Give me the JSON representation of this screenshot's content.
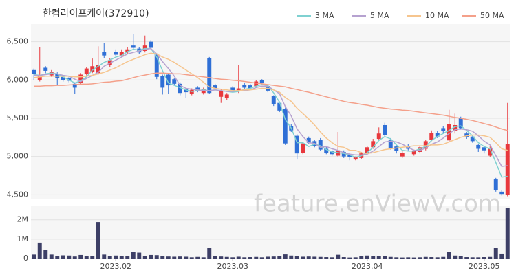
{
  "watermark": "feature.enViewV.com",
  "chart_data": [
    {
      "type": "candlestick",
      "title": "한컴라이프케어(372910)",
      "up_color": "#e8383d",
      "down_color": "#2f6fd6",
      "grid": true,
      "legend": "top-right",
      "ylim": [
        4440,
        6730
      ],
      "yticks": [
        {
          "value": 4500,
          "label": "4,500"
        },
        {
          "value": 5000,
          "label": "5,000"
        },
        {
          "value": 5500,
          "label": "5,500"
        },
        {
          "value": 6000,
          "label": "6,000"
        },
        {
          "value": 6500,
          "label": "6,500"
        }
      ],
      "open": [
        6130,
        6000,
        6160,
        6060,
        6080,
        6040,
        6030,
        5950,
        5960,
        6080,
        6110,
        6090,
        6370,
        6200,
        6370,
        6320,
        6360,
        6450,
        6410,
        6380,
        6500,
        6330,
        6050,
        6070,
        6010,
        5950,
        5880,
        5820,
        5900,
        5830,
        6290,
        5930,
        5780,
        5760,
        5900,
        5850,
        5940,
        5930,
        5920,
        6000,
        5920,
        5790,
        5700,
        5620,
        5400,
        5270,
        5050,
        5240,
        5200,
        5220,
        5100,
        5070,
        5010,
        5060,
        5030,
        4960,
        4980,
        5050,
        5120,
        5230,
        5410,
        5220,
        5130,
        5000,
        5140,
        5030,
        5060,
        5100,
        5220,
        5310,
        5370,
        5210,
        5330,
        5500,
        5300,
        5260,
        5150,
        5120,
        5010,
        4700,
        4540,
        4500
      ],
      "high": [
        6150,
        6430,
        6180,
        6130,
        6100,
        6060,
        6050,
        5970,
        6090,
        6170,
        6280,
        6440,
        6480,
        6290,
        6400,
        6400,
        6430,
        6600,
        6430,
        6580,
        6520,
        6350,
        6070,
        6090,
        6030,
        5970,
        5900,
        5890,
        5920,
        5900,
        6300,
        5950,
        5880,
        5830,
        5920,
        6200,
        5960,
        5950,
        6000,
        6010,
        5940,
        5800,
        5720,
        5640,
        5420,
        5290,
        5190,
        5260,
        5220,
        5240,
        5130,
        5080,
        5320,
        5080,
        5050,
        5000,
        5060,
        5140,
        5230,
        5380,
        5440,
        5240,
        5150,
        5070,
        5160,
        5090,
        5140,
        5220,
        5340,
        5330,
        5400,
        5610,
        5560,
        5520,
        5320,
        5270,
        5160,
        5130,
        5130,
        4720,
        4560,
        5700
      ],
      "low": [
        6000,
        5980,
        6090,
        6040,
        5930,
        5980,
        5970,
        5820,
        5940,
        6060,
        6090,
        6070,
        6290,
        6170,
        6310,
        6300,
        6340,
        6400,
        6340,
        6360,
        6400,
        6010,
        5810,
        5820,
        5930,
        5800,
        5760,
        5800,
        5840,
        5810,
        5820,
        5870,
        5700,
        5740,
        5840,
        5830,
        5880,
        5870,
        5900,
        5940,
        5840,
        5660,
        5580,
        5150,
        5320,
        4960,
        5030,
        5160,
        5120,
        5070,
        5030,
        5010,
        4990,
        4980,
        4950,
        4950,
        4970,
        5040,
        5100,
        5210,
        5260,
        5090,
        5040,
        4980,
        5080,
        5010,
        5040,
        5080,
        5200,
        5240,
        5310,
        5190,
        5300,
        5350,
        5230,
        5180,
        5060,
        5040,
        4990,
        4540,
        4490,
        4480
      ],
      "close": [
        6080,
        6050,
        6120,
        6110,
        6020,
        6000,
        5990,
        5900,
        6070,
        6150,
        6180,
        6200,
        6320,
        6260,
        6330,
        6370,
        6400,
        6420,
        6360,
        6450,
        6420,
        6040,
        5900,
        5930,
        5950,
        5830,
        5840,
        5870,
        5860,
        5880,
        5830,
        5890,
        5850,
        5810,
        5860,
        5890,
        5900,
        5890,
        5980,
        5960,
        5860,
        5680,
        5600,
        5170,
        5340,
        5040,
        5170,
        5180,
        5140,
        5090,
        5050,
        5030,
        5080,
        5000,
        4990,
        4990,
        5040,
        5120,
        5200,
        5300,
        5280,
        5110,
        5070,
        5050,
        5100,
        5070,
        5120,
        5200,
        5310,
        5260,
        5330,
        5420,
        5410,
        5370,
        5250,
        5200,
        5100,
        5080,
        5110,
        4560,
        4510,
        5160
      ],
      "lines": [
        {
          "name": "3 MA",
          "color": "#7fd1d1",
          "values": [
            6070,
            6060,
            6080,
            6090,
            6080,
            6040,
            6000,
            5960,
            5990,
            6040,
            6130,
            6180,
            6230,
            6260,
            6300,
            6320,
            6370,
            6400,
            6390,
            6410,
            6410,
            6300,
            6120,
            5960,
            5930,
            5900,
            5870,
            5850,
            5860,
            5870,
            5860,
            5870,
            5860,
            5850,
            5840,
            5850,
            5880,
            5890,
            5920,
            5940,
            5930,
            5830,
            5710,
            5480,
            5370,
            5180,
            5180,
            5130,
            5160,
            5140,
            5090,
            5060,
            5050,
            5040,
            5020,
            4990,
            5010,
            5050,
            5120,
            5210,
            5260,
            5230,
            5150,
            5080,
            5070,
            5070,
            5100,
            5130,
            5210,
            5260,
            5300,
            5340,
            5390,
            5400,
            5340,
            5270,
            5180,
            5130,
            5100,
            4920,
            4730,
            4740
          ]
        },
        {
          "name": "5 MA",
          "color": "#b6a2d0",
          "values": [
            6060,
            6060,
            6070,
            6080,
            6080,
            6060,
            6050,
            6010,
            5980,
            6020,
            6060,
            6100,
            6180,
            6220,
            6260,
            6300,
            6340,
            6360,
            6380,
            6400,
            6410,
            6340,
            6240,
            6150,
            6050,
            5930,
            5890,
            5880,
            5870,
            5860,
            5860,
            5870,
            5860,
            5850,
            5850,
            5860,
            5860,
            5870,
            5900,
            5920,
            5920,
            5870,
            5820,
            5650,
            5530,
            5360,
            5260,
            5180,
            5170,
            5120,
            5130,
            5100,
            5080,
            5050,
            5030,
            5020,
            5020,
            5030,
            5070,
            5130,
            5190,
            5200,
            5190,
            5160,
            5120,
            5080,
            5080,
            5110,
            5160,
            5190,
            5240,
            5300,
            5350,
            5360,
            5350,
            5330,
            5270,
            5200,
            5150,
            5010,
            4870,
            4880
          ]
        },
        {
          "name": "10 MA",
          "color": "#f6c58e",
          "values": [
            6030,
            6040,
            6050,
            6050,
            6050,
            6050,
            6050,
            6040,
            6040,
            6050,
            6060,
            6080,
            6100,
            6130,
            6160,
            6200,
            6240,
            6270,
            6300,
            6330,
            6350,
            6340,
            6300,
            6270,
            6230,
            6180,
            6130,
            6080,
            6030,
            5970,
            5910,
            5890,
            5880,
            5870,
            5860,
            5860,
            5870,
            5870,
            5880,
            5890,
            5890,
            5870,
            5840,
            5770,
            5720,
            5630,
            5560,
            5490,
            5410,
            5320,
            5240,
            5180,
            5130,
            5120,
            5080,
            5080,
            5050,
            5040,
            5050,
            5070,
            5090,
            5100,
            5110,
            5120,
            5130,
            5140,
            5140,
            5140,
            5150,
            5150,
            5160,
            5190,
            5220,
            5250,
            5270,
            5280,
            5280,
            5270,
            5250,
            5180,
            5100,
            5080
          ]
        },
        {
          "name": "50 MA",
          "color": "#f4a08a",
          "values": [
            5920,
            5920,
            5925,
            5925,
            5930,
            5930,
            5935,
            5940,
            5945,
            5945,
            5950,
            5960,
            5970,
            5975,
            5985,
            5990,
            6010,
            6030,
            6050,
            6065,
            6080,
            6090,
            6090,
            6085,
            6080,
            6080,
            6070,
            6060,
            6050,
            6040,
            6030,
            6020,
            6010,
            6005,
            5995,
            5990,
            5980,
            5970,
            5960,
            5950,
            5940,
            5930,
            5920,
            5910,
            5890,
            5875,
            5855,
            5840,
            5820,
            5800,
            5780,
            5760,
            5740,
            5720,
            5705,
            5695,
            5680,
            5670,
            5655,
            5640,
            5630,
            5620,
            5615,
            5605,
            5600,
            5590,
            5580,
            5570,
            5560,
            5550,
            5540,
            5525,
            5510,
            5500,
            5485,
            5470,
            5450,
            5430,
            5410,
            5385,
            5360,
            5340
          ]
        }
      ]
    },
    {
      "type": "bar",
      "color": "#3d3f66",
      "ylim": [
        0,
        2700000
      ],
      "yticks": [
        0,
        {
          "value": 1000000,
          "label": "1M"
        },
        {
          "value": 2000000,
          "label": "2M"
        }
      ],
      "categories": [
        null,
        null,
        null,
        null,
        null,
        null,
        null,
        null,
        null,
        null,
        null,
        null,
        null,
        null,
        "2023.02",
        null,
        null,
        null,
        null,
        null,
        null,
        null,
        null,
        null,
        null,
        null,
        null,
        null,
        null,
        null,
        null,
        null,
        null,
        null,
        "2023.03",
        null,
        null,
        null,
        null,
        null,
        null,
        null,
        null,
        null,
        null,
        null,
        null,
        null,
        null,
        null,
        null,
        null,
        null,
        null,
        null,
        null,
        null,
        "2023.04",
        null,
        null,
        null,
        null,
        null,
        null,
        null,
        null,
        null,
        null,
        null,
        null,
        null,
        null,
        null,
        null,
        null,
        null,
        null,
        "2023.05",
        null,
        null,
        null,
        null
      ],
      "values": [
        200000,
        820000,
        450000,
        200000,
        130000,
        160000,
        150000,
        100000,
        180000,
        140000,
        120000,
        1880000,
        200000,
        120000,
        150000,
        110000,
        120000,
        320000,
        300000,
        120000,
        180000,
        170000,
        120000,
        100000,
        90000,
        100000,
        90000,
        60000,
        80000,
        60000,
        550000,
        120000,
        100000,
        80000,
        60000,
        90000,
        60000,
        70000,
        80000,
        60000,
        90000,
        100000,
        110000,
        210000,
        150000,
        130000,
        90000,
        100000,
        90000,
        80000,
        70000,
        60000,
        190000,
        70000,
        50000,
        60000,
        120000,
        150000,
        140000,
        120000,
        110000,
        80000,
        60000,
        50000,
        60000,
        50000,
        60000,
        80000,
        70000,
        60000,
        80000,
        350000,
        150000,
        130000,
        70000,
        60000,
        60000,
        70000,
        80000,
        550000,
        250000,
        2600000
      ]
    }
  ]
}
